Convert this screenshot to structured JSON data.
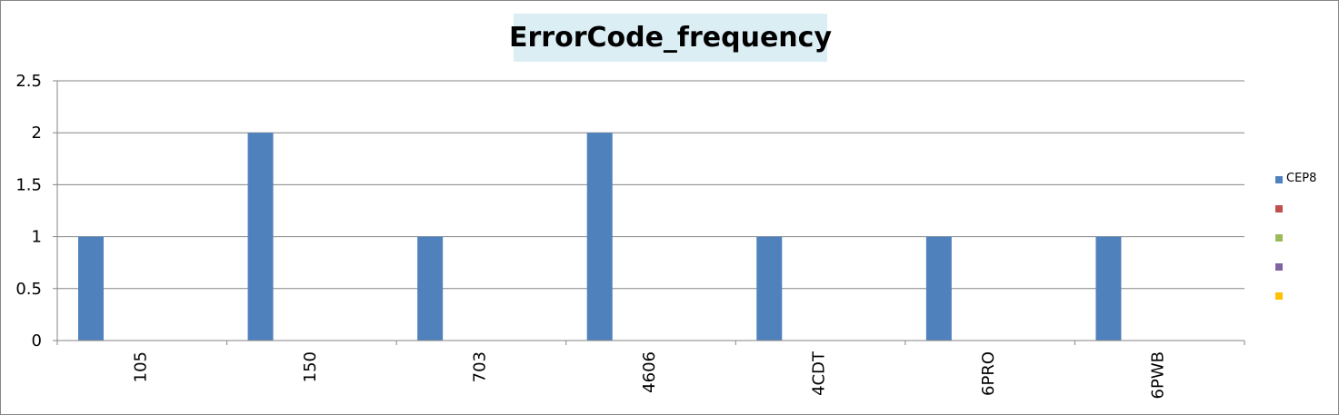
{
  "chart_data": {
    "type": "bar",
    "title": "ErrorCode_frequency",
    "categories": [
      "105",
      "150",
      "703",
      "4606",
      "4CDT",
      "6PRO",
      "6PWB"
    ],
    "series": [
      {
        "name": "CEP8",
        "color": "#4f81bd",
        "values": [
          1,
          2,
          1,
          2,
          1,
          1,
          1
        ]
      }
    ],
    "legend": [
      {
        "name": "CEP8",
        "color": "#4f81bd"
      },
      {
        "name": "",
        "color": "#c0504d"
      },
      {
        "name": "",
        "color": "#9bbb59"
      },
      {
        "name": "",
        "color": "#8064a2"
      },
      {
        "name": "",
        "color": "#ffc000"
      }
    ],
    "y_ticks": [
      "0",
      "0.5",
      "1",
      "1.5",
      "2",
      "2.5"
    ],
    "ylim": [
      0,
      2.5
    ],
    "xlabel": "",
    "ylabel": "",
    "grid": true,
    "legend_position": "right"
  }
}
